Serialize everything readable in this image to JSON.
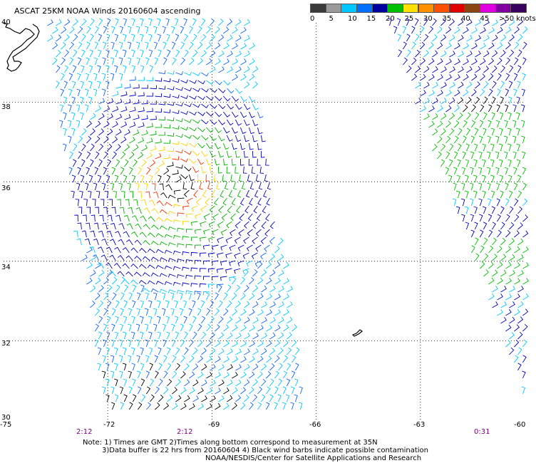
{
  "title": "ASCAT 25KM NOAA Winds 20160604 ascending",
  "legend": {
    "colors": [
      "#3a3a3a",
      "#9a9a9a",
      "#00c8ff",
      "#0070ff",
      "#0000a0",
      "#00c000",
      "#ffe000",
      "#ff9000",
      "#ff5000",
      "#e00000",
      "#8b4513",
      "#e000e0",
      "#8000a0",
      "#3a0060"
    ],
    "labels": [
      "0",
      "5",
      "10",
      "15",
      "20",
      "25",
      "30",
      "35",
      "40",
      "45",
      ">50 knots"
    ]
  },
  "axes": {
    "lat_labels": [
      "40",
      "38",
      "36",
      "34",
      "32",
      "30"
    ],
    "lon_labels": [
      "-75",
      "-72",
      "-69",
      "-66",
      "-63",
      "-60"
    ],
    "time_labels": [
      "2:12",
      "2:12",
      "0:31"
    ]
  },
  "notes": {
    "line1": "Note: 1) Times are GMT 2)Times along bottom correspond to measurement at 35N",
    "line2": "3)Data buffer is 22 hrs from 20160604 4) Black wind barbs indicate possible contamination",
    "line3": "NOAA/NESDIS/Center for Satellite Applications and Research"
  },
  "storm_center": {
    "lat": 35.95,
    "lon": -70.0
  }
}
